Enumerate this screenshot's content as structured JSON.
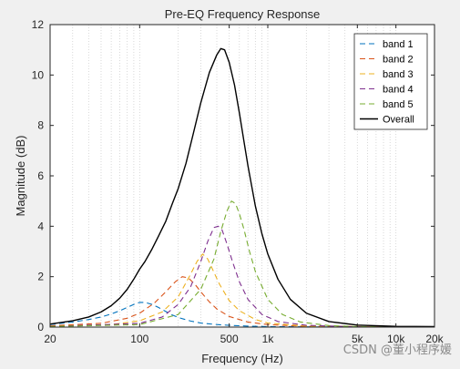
{
  "chart_data": {
    "type": "line",
    "title": "Pre-EQ Frequency Response",
    "xlabel": "Frequency (Hz)",
    "ylabel": "Magnitude (dB)",
    "xscale": "log",
    "xlim": [
      20,
      20000
    ],
    "ylim": [
      0,
      12
    ],
    "xticks": [
      20,
      100,
      500,
      1000,
      5000,
      10000,
      20000
    ],
    "xtick_labels": [
      "20",
      "100",
      "500",
      "1k",
      "5k",
      "10k",
      "20k"
    ],
    "yticks": [
      0,
      2,
      4,
      6,
      8,
      10,
      12
    ],
    "ytick_labels": [
      "0",
      "2",
      "4",
      "6",
      "8",
      "10",
      "12"
    ],
    "grid": "x-minor dotted",
    "legend_position": "top-right",
    "series": [
      {
        "name": "band 1",
        "color": "#0072BD",
        "dash": "dashed",
        "x": [
          20,
          30,
          40,
          50,
          60,
          70,
          80,
          90,
          100,
          110,
          125,
          140,
          160,
          180,
          200,
          250,
          300,
          400,
          500,
          700,
          1000,
          2000,
          5000,
          20000
        ],
        "y": [
          0.1,
          0.2,
          0.3,
          0.4,
          0.52,
          0.65,
          0.78,
          0.9,
          0.98,
          0.98,
          0.9,
          0.78,
          0.62,
          0.48,
          0.38,
          0.24,
          0.16,
          0.1,
          0.07,
          0.04,
          0.02,
          0.01,
          0.0,
          0.0
        ]
      },
      {
        "name": "band 2",
        "color": "#D95319",
        "dash": "dashed",
        "x": [
          20,
          50,
          80,
          100,
          130,
          160,
          190,
          215,
          240,
          270,
          300,
          350,
          400,
          500,
          700,
          1000,
          2000,
          20000
        ],
        "y": [
          0.05,
          0.15,
          0.35,
          0.55,
          0.95,
          1.4,
          1.8,
          2.0,
          1.95,
          1.7,
          1.4,
          1.0,
          0.72,
          0.42,
          0.2,
          0.1,
          0.03,
          0.0
        ]
      },
      {
        "name": "band 3",
        "color": "#EDB120",
        "dash": "dashed",
        "x": [
          20,
          60,
          100,
          150,
          200,
          250,
          280,
          310,
          340,
          370,
          420,
          500,
          600,
          800,
          1000,
          2000,
          20000
        ],
        "y": [
          0.03,
          0.1,
          0.25,
          0.6,
          1.2,
          2.1,
          2.6,
          2.9,
          2.7,
          2.3,
          1.7,
          1.05,
          0.65,
          0.3,
          0.16,
          0.04,
          0.0
        ]
      },
      {
        "name": "band 4",
        "color": "#7E2F8E",
        "dash": "dashed",
        "x": [
          20,
          100,
          150,
          200,
          250,
          300,
          340,
          380,
          410,
          440,
          480,
          530,
          600,
          700,
          900,
          1200,
          2000,
          5000,
          20000
        ],
        "y": [
          0.02,
          0.15,
          0.4,
          0.9,
          1.6,
          2.6,
          3.4,
          3.95,
          4.0,
          3.85,
          3.3,
          2.6,
          1.8,
          1.1,
          0.5,
          0.22,
          0.07,
          0.01,
          0.0
        ]
      },
      {
        "name": "band 5",
        "color": "#77AC30",
        "dash": "dashed",
        "x": [
          20,
          100,
          200,
          300,
          380,
          430,
          480,
          520,
          560,
          600,
          650,
          720,
          800,
          1000,
          1300,
          1800,
          3000,
          5000,
          20000
        ],
        "y": [
          0.02,
          0.1,
          0.5,
          1.5,
          2.7,
          3.8,
          4.6,
          5.0,
          4.9,
          4.5,
          3.9,
          3.0,
          2.2,
          1.1,
          0.5,
          0.2,
          0.06,
          0.02,
          0.0
        ]
      },
      {
        "name": "Overall",
        "color": "#000000",
        "dash": "solid",
        "x": [
          20,
          30,
          40,
          50,
          60,
          70,
          80,
          90,
          100,
          110,
          125,
          140,
          160,
          180,
          200,
          230,
          260,
          300,
          350,
          400,
          430,
          460,
          500,
          550,
          600,
          650,
          700,
          800,
          900,
          1000,
          1200,
          1500,
          2000,
          3000,
          5000,
          10000,
          20000
        ],
        "y": [
          0.12,
          0.25,
          0.4,
          0.6,
          0.85,
          1.15,
          1.5,
          1.9,
          2.3,
          2.6,
          3.1,
          3.6,
          4.2,
          4.9,
          5.5,
          6.5,
          7.6,
          8.9,
          10.1,
          10.8,
          11.05,
          11.0,
          10.5,
          9.6,
          8.5,
          7.4,
          6.4,
          4.8,
          3.7,
          2.9,
          1.9,
          1.1,
          0.55,
          0.22,
          0.08,
          0.03,
          0.02
        ]
      }
    ]
  },
  "watermark": "CSDN @董小程序媛"
}
